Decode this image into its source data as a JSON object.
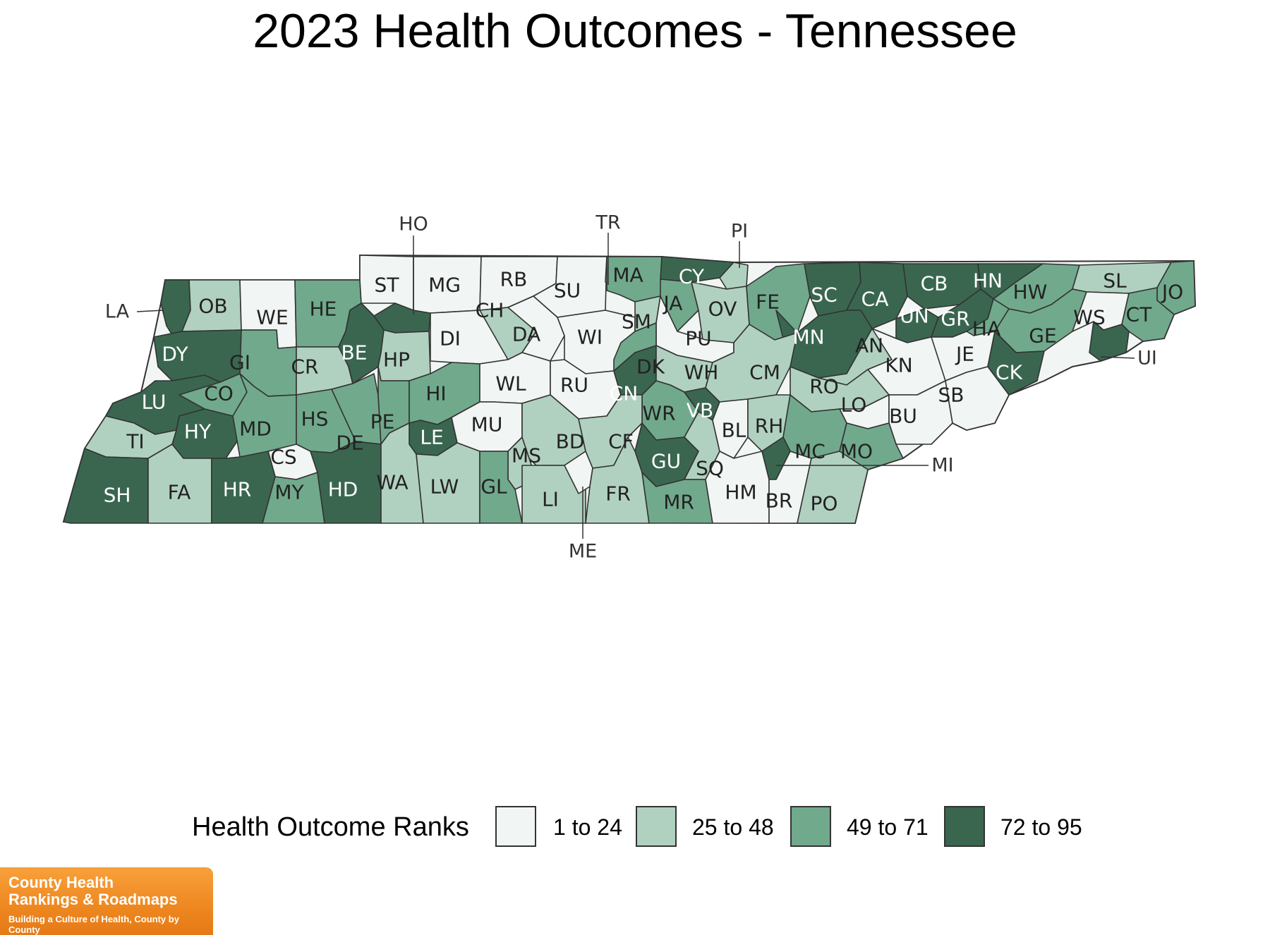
{
  "title": "2023 Health Outcomes - Tennessee",
  "legend": {
    "title": "Health Outcome Ranks",
    "classes": [
      {
        "label": "1 to 24",
        "color": "#f1f5f3"
      },
      {
        "label": "25 to 48",
        "color": "#b1d1c0"
      },
      {
        "label": "49 to 71",
        "color": "#71a98c"
      },
      {
        "label": "72 to 95",
        "color": "#3a6650"
      }
    ]
  },
  "counties": [
    {
      "abbr": "LA",
      "class": 3
    },
    {
      "abbr": "OB",
      "class": 1
    },
    {
      "abbr": "WE",
      "class": 0
    },
    {
      "abbr": "HE",
      "class": 2
    },
    {
      "abbr": "ST",
      "class": 0
    },
    {
      "abbr": "HO",
      "class": 3
    },
    {
      "abbr": "MG",
      "class": 0
    },
    {
      "abbr": "RB",
      "class": 0
    },
    {
      "abbr": "SU",
      "class": 0
    },
    {
      "abbr": "TR",
      "class": 0
    },
    {
      "abbr": "MA",
      "class": 2
    },
    {
      "abbr": "CY",
      "class": 3
    },
    {
      "abbr": "PI",
      "class": 1
    },
    {
      "abbr": "JA",
      "class": 2
    },
    {
      "abbr": "OV",
      "class": 1
    },
    {
      "abbr": "FE",
      "class": 2
    },
    {
      "abbr": "SC",
      "class": 3
    },
    {
      "abbr": "CA",
      "class": 3
    },
    {
      "abbr": "CB",
      "class": 3
    },
    {
      "abbr": "HN",
      "class": 3
    },
    {
      "abbr": "HW",
      "class": 2
    },
    {
      "abbr": "SL",
      "class": 1
    },
    {
      "abbr": "JO",
      "class": 2
    },
    {
      "abbr": "DY",
      "class": 3
    },
    {
      "abbr": "GI",
      "class": 2
    },
    {
      "abbr": "CR",
      "class": 1
    },
    {
      "abbr": "BE",
      "class": 3
    },
    {
      "abbr": "HP",
      "class": 1
    },
    {
      "abbr": "DI",
      "class": 0
    },
    {
      "abbr": "CH",
      "class": 1
    },
    {
      "abbr": "DA",
      "class": 0
    },
    {
      "abbr": "WI",
      "class": 0
    },
    {
      "abbr": "SM",
      "class": 1
    },
    {
      "abbr": "PU",
      "class": 0
    },
    {
      "abbr": "MN",
      "class": 3
    },
    {
      "abbr": "UN",
      "class": 3
    },
    {
      "abbr": "GR",
      "class": 3
    },
    {
      "abbr": "HA",
      "class": 2
    },
    {
      "abbr": "GE",
      "class": 2
    },
    {
      "abbr": "WS",
      "class": 0
    },
    {
      "abbr": "CT",
      "class": 2
    },
    {
      "abbr": "UI",
      "class": 3
    },
    {
      "abbr": "LU",
      "class": 3
    },
    {
      "abbr": "CO",
      "class": 2
    },
    {
      "abbr": "HY",
      "class": 3
    },
    {
      "abbr": "MD",
      "class": 2
    },
    {
      "abbr": "HS",
      "class": 2
    },
    {
      "abbr": "DE",
      "class": 2
    },
    {
      "abbr": "PE",
      "class": 2
    },
    {
      "abbr": "HI",
      "class": 2
    },
    {
      "abbr": "LE",
      "class": 3
    },
    {
      "abbr": "WL",
      "class": 0
    },
    {
      "abbr": "RU",
      "class": 0
    },
    {
      "abbr": "CN",
      "class": 3
    },
    {
      "abbr": "DK",
      "class": 2
    },
    {
      "abbr": "WH",
      "class": 1
    },
    {
      "abbr": "WR",
      "class": 2
    },
    {
      "abbr": "VB",
      "class": 3
    },
    {
      "abbr": "CM",
      "class": 1
    },
    {
      "abbr": "AN",
      "class": 1
    },
    {
      "abbr": "KN",
      "class": 0
    },
    {
      "abbr": "JE",
      "class": 0
    },
    {
      "abbr": "CK",
      "class": 3
    },
    {
      "abbr": "RO",
      "class": 1
    },
    {
      "abbr": "LO",
      "class": 0
    },
    {
      "abbr": "BU",
      "class": 0
    },
    {
      "abbr": "SB",
      "class": 0
    },
    {
      "abbr": "TI",
      "class": 1
    },
    {
      "abbr": "CS",
      "class": 0
    },
    {
      "abbr": "MU",
      "class": 0
    },
    {
      "abbr": "MS",
      "class": 1
    },
    {
      "abbr": "BD",
      "class": 1
    },
    {
      "abbr": "CF",
      "class": 1
    },
    {
      "abbr": "GU",
      "class": 3
    },
    {
      "abbr": "SQ",
      "class": 1
    },
    {
      "abbr": "BL",
      "class": 0
    },
    {
      "abbr": "RH",
      "class": 1
    },
    {
      "abbr": "MC",
      "class": 2
    },
    {
      "abbr": "MO",
      "class": 2
    },
    {
      "abbr": "MI",
      "class": 3
    },
    {
      "abbr": "SH",
      "class": 3
    },
    {
      "abbr": "FA",
      "class": 1
    },
    {
      "abbr": "HR",
      "class": 3
    },
    {
      "abbr": "MY",
      "class": 2
    },
    {
      "abbr": "HD",
      "class": 3
    },
    {
      "abbr": "WA",
      "class": 1
    },
    {
      "abbr": "LW",
      "class": 1
    },
    {
      "abbr": "GL",
      "class": 2
    },
    {
      "abbr": "LI",
      "class": 1
    },
    {
      "abbr": "ME",
      "class": 0
    },
    {
      "abbr": "FR",
      "class": 1
    },
    {
      "abbr": "MR",
      "class": 2
    },
    {
      "abbr": "HM",
      "class": 0
    },
    {
      "abbr": "BR",
      "class": 0
    },
    {
      "abbr": "PO",
      "class": 1
    }
  ],
  "logo": {
    "line1": "County Health",
    "line2": "Rankings & Roadmaps",
    "tagline": "Building a Culture of Health, County by County"
  }
}
